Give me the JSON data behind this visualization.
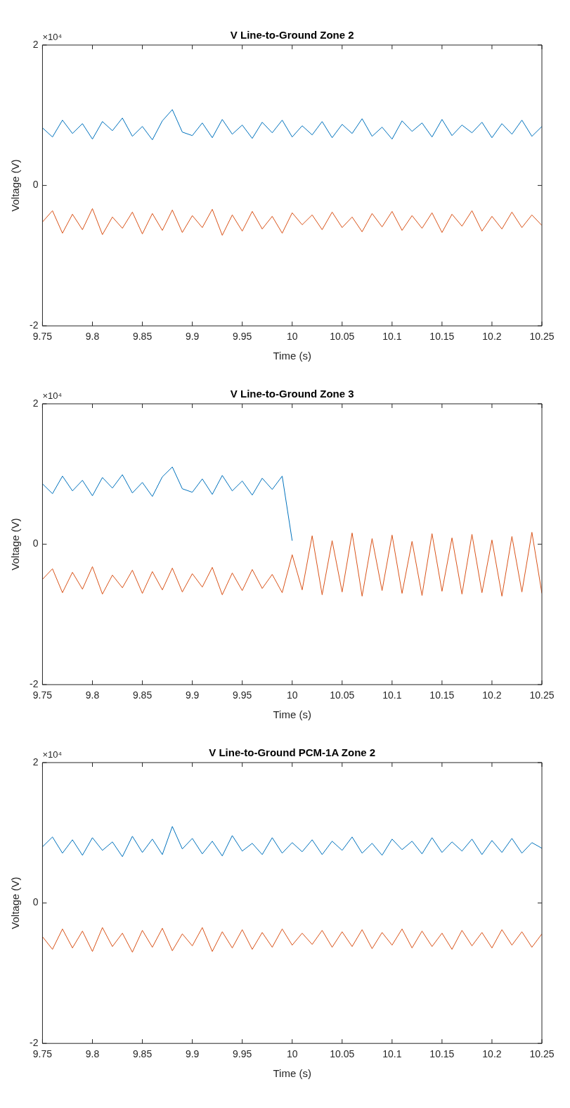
{
  "chart_data": [
    {
      "type": "line",
      "title": "V Line-to-Ground Zone 2",
      "xlabel": "Time (s)",
      "ylabel": "Voltage (V)",
      "annotations": [
        "×10⁴"
      ],
      "grid": false,
      "marker": "none",
      "x": [
        9.75,
        9.76,
        9.77,
        9.78,
        9.79,
        9.8,
        9.81,
        9.82,
        9.83,
        9.84,
        9.85,
        9.86,
        9.87,
        9.88,
        9.89,
        9.9,
        9.91,
        9.92,
        9.93,
        9.94,
        9.95,
        9.96,
        9.97,
        9.98,
        9.99,
        10,
        10.01,
        10.02,
        10.03,
        10.04,
        10.05,
        10.06,
        10.07,
        10.08,
        10.09,
        10.1,
        10.11,
        10.12,
        10.13,
        10.14,
        10.15,
        10.16,
        10.17,
        10.18,
        10.19,
        10.2,
        10.21,
        10.22,
        10.23,
        10.24,
        10.25
      ],
      "xlim": [
        9.75,
        10.25
      ],
      "xticks": [
        9.75,
        9.8,
        9.85,
        9.9,
        9.95,
        10,
        10.05,
        10.1,
        10.15,
        10.2,
        10.25
      ],
      "ylim": [
        -2,
        2
      ],
      "yticks": [
        -2,
        0,
        2
      ],
      "series": [
        {
          "color": "#0072bd",
          "values": [
            0.82,
            0.69,
            0.93,
            0.74,
            0.88,
            0.66,
            0.91,
            0.78,
            0.96,
            0.7,
            0.84,
            0.65,
            0.92,
            1.08,
            0.76,
            0.71,
            0.89,
            0.68,
            0.94,
            0.73,
            0.86,
            0.67,
            0.9,
            0.75,
            0.93,
            0.69,
            0.85,
            0.72,
            0.91,
            0.68,
            0.87,
            0.74,
            0.95,
            0.7,
            0.83,
            0.66,
            0.92,
            0.77,
            0.89,
            0.69,
            0.94,
            0.71,
            0.86,
            0.75,
            0.9,
            0.68,
            0.88,
            0.73,
            0.93,
            0.7,
            0.84
          ]
        },
        {
          "color": "#d95319",
          "values": [
            -0.52,
            -0.36,
            -0.68,
            -0.41,
            -0.63,
            -0.33,
            -0.7,
            -0.45,
            -0.61,
            -0.38,
            -0.69,
            -0.4,
            -0.64,
            -0.35,
            -0.67,
            -0.43,
            -0.6,
            -0.34,
            -0.71,
            -0.42,
            -0.65,
            -0.37,
            -0.62,
            -0.44,
            -0.68,
            -0.39,
            -0.56,
            -0.42,
            -0.63,
            -0.38,
            -0.6,
            -0.45,
            -0.66,
            -0.4,
            -0.59,
            -0.37,
            -0.64,
            -0.43,
            -0.61,
            -0.39,
            -0.67,
            -0.41,
            -0.58,
            -0.36,
            -0.65,
            -0.44,
            -0.62,
            -0.38,
            -0.6,
            -0.42,
            -0.57
          ]
        }
      ]
    },
    {
      "type": "line",
      "title": "V Line-to-Ground Zone 3",
      "xlabel": "Time (s)",
      "ylabel": "Voltage (V)",
      "annotations": [
        "×10⁴"
      ],
      "grid": false,
      "marker": "none",
      "x": [
        9.75,
        9.76,
        9.77,
        9.78,
        9.79,
        9.8,
        9.81,
        9.82,
        9.83,
        9.84,
        9.85,
        9.86,
        9.87,
        9.88,
        9.89,
        9.9,
        9.91,
        9.92,
        9.93,
        9.94,
        9.95,
        9.96,
        9.97,
        9.98,
        9.99,
        10,
        10.01,
        10.02,
        10.03,
        10.04,
        10.05,
        10.06,
        10.07,
        10.08,
        10.09,
        10.1,
        10.11,
        10.12,
        10.13,
        10.14,
        10.15,
        10.16,
        10.17,
        10.18,
        10.19,
        10.2,
        10.21,
        10.22,
        10.23,
        10.24,
        10.25
      ],
      "xlim": [
        9.75,
        10.25
      ],
      "xticks": [
        9.75,
        9.8,
        9.85,
        9.9,
        9.95,
        10,
        10.05,
        10.1,
        10.15,
        10.2,
        10.25
      ],
      "ylim": [
        -2,
        2
      ],
      "yticks": [
        -2,
        0,
        2
      ],
      "series": [
        {
          "color": "#0072bd",
          "values": [
            0.86,
            0.72,
            0.97,
            0.76,
            0.91,
            0.69,
            0.95,
            0.8,
            0.99,
            0.73,
            0.88,
            0.68,
            0.96,
            1.1,
            0.79,
            0.74,
            0.93,
            0.71,
            0.98,
            0.76,
            0.9,
            0.7,
            0.94,
            0.78,
            0.97,
            0.05,
            null,
            null,
            null,
            null,
            null,
            null,
            null,
            null,
            null,
            null,
            null,
            null,
            null,
            null,
            null,
            null,
            null,
            null,
            null,
            null,
            null,
            null,
            null,
            null,
            null
          ]
        },
        {
          "color": "#d95319",
          "values": [
            -0.5,
            -0.35,
            -0.69,
            -0.4,
            -0.64,
            -0.32,
            -0.71,
            -0.44,
            -0.62,
            -0.37,
            -0.7,
            -0.39,
            -0.65,
            -0.34,
            -0.68,
            -0.42,
            -0.61,
            -0.33,
            -0.72,
            -0.41,
            -0.66,
            -0.36,
            -0.63,
            -0.43,
            -0.69,
            -0.15,
            -0.65,
            0.12,
            -0.72,
            0.05,
            -0.68,
            0.16,
            -0.74,
            0.08,
            -0.66,
            0.13,
            -0.7,
            0.04,
            -0.73,
            0.15,
            -0.67,
            0.09,
            -0.71,
            0.14,
            -0.69,
            0.06,
            -0.74,
            0.11,
            -0.68,
            0.17,
            -0.7
          ]
        }
      ]
    },
    {
      "type": "line",
      "title": "V Line-to-Ground PCM-1A Zone 2",
      "xlabel": "Time (s)",
      "ylabel": "Voltage (V)",
      "annotations": [
        "×10⁴"
      ],
      "grid": false,
      "marker": "none",
      "x": [
        9.75,
        9.76,
        9.77,
        9.78,
        9.79,
        9.8,
        9.81,
        9.82,
        9.83,
        9.84,
        9.85,
        9.86,
        9.87,
        9.88,
        9.89,
        9.9,
        9.91,
        9.92,
        9.93,
        9.94,
        9.95,
        9.96,
        9.97,
        9.98,
        9.99,
        10,
        10.01,
        10.02,
        10.03,
        10.04,
        10.05,
        10.06,
        10.07,
        10.08,
        10.09,
        10.1,
        10.11,
        10.12,
        10.13,
        10.14,
        10.15,
        10.16,
        10.17,
        10.18,
        10.19,
        10.2,
        10.21,
        10.22,
        10.23,
        10.24,
        10.25
      ],
      "xlim": [
        9.75,
        10.25
      ],
      "xticks": [
        9.75,
        9.8,
        9.85,
        9.9,
        9.95,
        10,
        10.05,
        10.1,
        10.15,
        10.2,
        10.25
      ],
      "ylim": [
        -2,
        2
      ],
      "yticks": [
        -2,
        0,
        2
      ],
      "series": [
        {
          "color": "#0072bd",
          "values": [
            0.8,
            0.94,
            0.71,
            0.9,
            0.68,
            0.93,
            0.75,
            0.87,
            0.66,
            0.95,
            0.72,
            0.91,
            0.69,
            1.09,
            0.77,
            0.92,
            0.7,
            0.88,
            0.67,
            0.96,
            0.74,
            0.85,
            0.69,
            0.93,
            0.71,
            0.86,
            0.73,
            0.9,
            0.69,
            0.88,
            0.75,
            0.94,
            0.71,
            0.85,
            0.68,
            0.91,
            0.76,
            0.88,
            0.7,
            0.93,
            0.72,
            0.87,
            0.74,
            0.91,
            0.69,
            0.89,
            0.72,
            0.92,
            0.71,
            0.86,
            0.78
          ]
        },
        {
          "color": "#d95319",
          "values": [
            -0.48,
            -0.66,
            -0.37,
            -0.64,
            -0.4,
            -0.69,
            -0.35,
            -0.62,
            -0.43,
            -0.7,
            -0.39,
            -0.63,
            -0.36,
            -0.68,
            -0.44,
            -0.61,
            -0.35,
            -0.69,
            -0.41,
            -0.64,
            -0.38,
            -0.66,
            -0.42,
            -0.63,
            -0.37,
            -0.6,
            -0.43,
            -0.59,
            -0.39,
            -0.63,
            -0.41,
            -0.62,
            -0.38,
            -0.65,
            -0.42,
            -0.6,
            -0.37,
            -0.64,
            -0.4,
            -0.62,
            -0.43,
            -0.66,
            -0.39,
            -0.61,
            -0.42,
            -0.64,
            -0.38,
            -0.6,
            -0.41,
            -0.63,
            -0.44
          ]
        }
      ]
    }
  ]
}
